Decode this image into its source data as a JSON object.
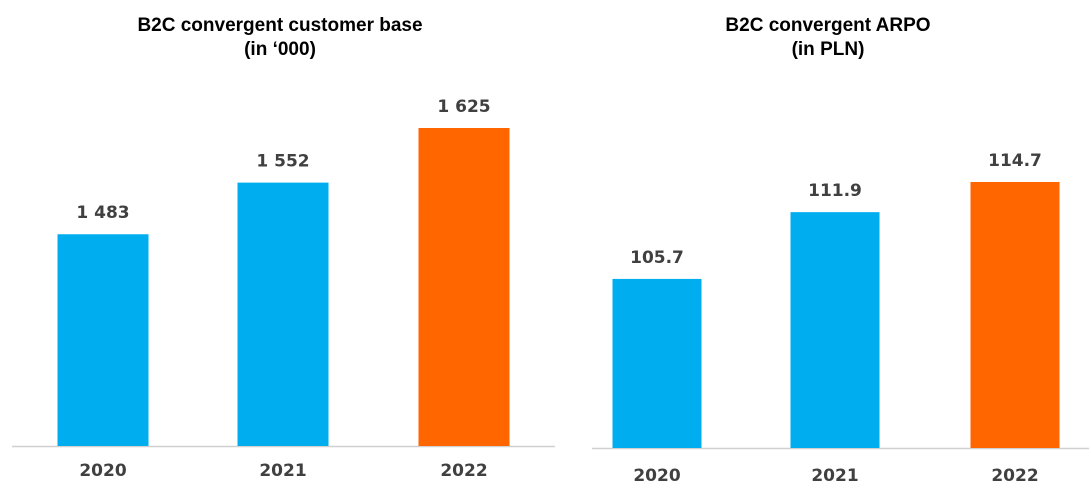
{
  "chart_data": [
    {
      "type": "bar",
      "title": "B2C convergent customer base",
      "subtitle": "(in ‘000)",
      "categories": [
        "2020",
        "2021",
        "2022"
      ],
      "values": [
        1483,
        1552,
        1625
      ],
      "value_labels": [
        "1 483",
        "1 552",
        "1 625"
      ],
      "bar_colors": [
        "#00AEEF",
        "#00AEEF",
        "#FF6600"
      ],
      "ylim": [
        1200,
        1625
      ],
      "grid": false
    },
    {
      "type": "bar",
      "title": "B2C convergent ARPO",
      "subtitle": "(in PLN)",
      "categories": [
        "2020",
        "2021",
        "2022"
      ],
      "values": [
        105.7,
        111.9,
        114.7
      ],
      "value_labels": [
        "105.7",
        "111.9",
        "114.7"
      ],
      "bar_colors": [
        "#00AEEF",
        "#00AEEF",
        "#FF6600"
      ],
      "ylim": [
        90,
        114.7
      ],
      "grid": false
    }
  ]
}
